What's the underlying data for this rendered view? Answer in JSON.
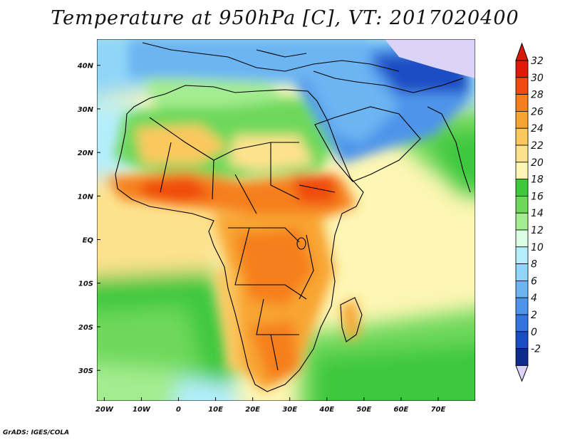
{
  "title": "Temperature at 950hPa [C], VT: 2017020400",
  "credit": "GrADS: IGES/COLA",
  "map": {
    "lon_range": [
      -22,
      80
    ],
    "lat_range": [
      -37,
      46
    ],
    "lat_ticks": [
      {
        "value": 40,
        "label": "40N"
      },
      {
        "value": 30,
        "label": "30N"
      },
      {
        "value": 20,
        "label": "20N"
      },
      {
        "value": 10,
        "label": "10N"
      },
      {
        "value": 0,
        "label": "EQ"
      },
      {
        "value": -10,
        "label": "10S"
      },
      {
        "value": -20,
        "label": "20S"
      },
      {
        "value": -30,
        "label": "30S"
      }
    ],
    "lon_ticks": [
      {
        "value": -20,
        "label": "20W"
      },
      {
        "value": -10,
        "label": "10W"
      },
      {
        "value": 0,
        "label": "0"
      },
      {
        "value": 10,
        "label": "10E"
      },
      {
        "value": 20,
        "label": "20E"
      },
      {
        "value": 30,
        "label": "30E"
      },
      {
        "value": 40,
        "label": "40E"
      },
      {
        "value": 50,
        "label": "50E"
      },
      {
        "value": 60,
        "label": "60E"
      },
      {
        "value": 70,
        "label": "70E"
      }
    ]
  },
  "colorbar": {
    "labels": [
      "32",
      "30",
      "28",
      "26",
      "24",
      "22",
      "20",
      "18",
      "16",
      "14",
      "12",
      "10",
      "8",
      "6",
      "4",
      "2",
      "0",
      "-2"
    ],
    "colors": [
      "#e01a0a",
      "#f04b10",
      "#f57f1c",
      "#f8a432",
      "#fbc85e",
      "#fde28e",
      "#fdf6b4",
      "#3ec83c",
      "#6ed85c",
      "#a4ec90",
      "#dcfce4",
      "#b4eefc",
      "#90d6f8",
      "#6cb4f2",
      "#4e94ea",
      "#3474de",
      "#1a4dc4",
      "#0f2c8c"
    ],
    "above_color": "#d81a0a",
    "below_color": "#dcd4f8"
  }
}
